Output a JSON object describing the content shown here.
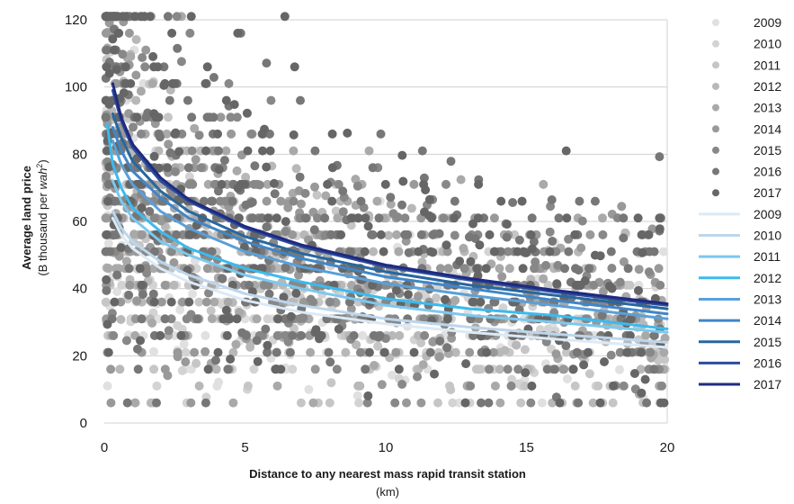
{
  "chart_data": {
    "type": "scatter",
    "ylabel": "Average land price",
    "ylabel_unit_prefix": "(B thousand per ",
    "ylabel_unit_italic": "wah",
    "ylabel_unit_suffix": ")",
    "ylabel_unit_superscript": "2",
    "xlabel": "Distance to any nearest mass rapid transit station",
    "xlabel_unit": "(km)",
    "xlim": [
      0,
      20
    ],
    "ylim": [
      0,
      120
    ],
    "xticks": [
      "0",
      "5",
      "10",
      "15",
      "20"
    ],
    "yticks": [
      "0",
      "20",
      "40",
      "60",
      "80",
      "100",
      "120"
    ],
    "grid": "horizontal",
    "legend_position": "right",
    "scatter_series": [
      {
        "name": "2009",
        "color": "#e0e0e0"
      },
      {
        "name": "2010",
        "color": "#d3d3d3"
      },
      {
        "name": "2011",
        "color": "#c6c6c6"
      },
      {
        "name": "2012",
        "color": "#b8b8b8"
      },
      {
        "name": "2013",
        "color": "#a9a9a9"
      },
      {
        "name": "2014",
        "color": "#999999"
      },
      {
        "name": "2015",
        "color": "#888888"
      },
      {
        "name": "2016",
        "color": "#777777"
      },
      {
        "name": "2017",
        "color": "#666666"
      }
    ],
    "trend_series": [
      {
        "name": "2009",
        "color": "#dbeaf6",
        "x": [
          0.3,
          0.6,
          1,
          2,
          3,
          5,
          7,
          10,
          13,
          16,
          20
        ],
        "y": [
          61,
          56,
          52,
          46,
          42,
          36.5,
          33,
          29.5,
          27,
          25,
          22.5
        ]
      },
      {
        "name": "2010",
        "color": "#bcd6ec",
        "x": [
          0.3,
          0.6,
          1,
          2,
          3,
          5,
          7,
          10,
          13,
          16,
          20
        ],
        "y": [
          63,
          58,
          54,
          48,
          44,
          38.5,
          35,
          31,
          28.5,
          26.5,
          24
        ]
      },
      {
        "name": "2011",
        "color": "#7cc8ee",
        "x": [
          0.3,
          0.6,
          1,
          2,
          3,
          5,
          7,
          10,
          13,
          16,
          20
        ],
        "y": [
          72,
          66,
          61,
          54,
          50,
          44,
          40,
          35,
          32,
          30,
          27
        ]
      },
      {
        "name": "2012",
        "color": "#3cbaed",
        "x": [
          0.1,
          0.3,
          0.6,
          1,
          2,
          3,
          5,
          7,
          10,
          13,
          16,
          20
        ],
        "y": [
          89,
          77,
          70,
          64,
          57,
          52,
          46,
          42,
          37,
          34,
          32,
          28
        ]
      },
      {
        "name": "2013",
        "color": "#5aa0d8",
        "x": [
          0.3,
          0.6,
          1,
          2,
          3,
          5,
          7,
          10,
          13,
          16,
          20
        ],
        "y": [
          84,
          77,
          71,
          63,
          58,
          51,
          46.5,
          41.5,
          38,
          35,
          31
        ]
      },
      {
        "name": "2014",
        "color": "#3f86c8",
        "x": [
          0.3,
          0.6,
          1,
          2,
          3,
          5,
          7,
          10,
          13,
          16,
          20
        ],
        "y": [
          88,
          81,
          75,
          67,
          61,
          54,
          49,
          43.5,
          40,
          36.5,
          32.5
        ]
      },
      {
        "name": "2015",
        "color": "#27679f",
        "x": [
          0.3,
          0.6,
          1,
          2,
          3,
          5,
          7,
          10,
          13,
          16,
          20
        ],
        "y": [
          92,
          85,
          78,
          69,
          63,
          55.5,
          50.5,
          45,
          41,
          38,
          34
        ]
      },
      {
        "name": "2016",
        "color": "#2c4c9c",
        "x": [
          0.3,
          0.6,
          1,
          2,
          3,
          5,
          7,
          10,
          13,
          16,
          20
        ],
        "y": [
          99,
          90,
          82,
          72,
          66,
          58,
          52.5,
          46.5,
          42.5,
          39,
          35
        ]
      },
      {
        "name": "2017",
        "color": "#1f2a80",
        "x": [
          0.3,
          0.6,
          1,
          2,
          3,
          5,
          7,
          10,
          13,
          16,
          20
        ],
        "y": [
          101,
          91,
          83,
          73,
          66.5,
          58.5,
          53,
          47,
          43,
          39.5,
          35.5
        ]
      }
    ]
  }
}
